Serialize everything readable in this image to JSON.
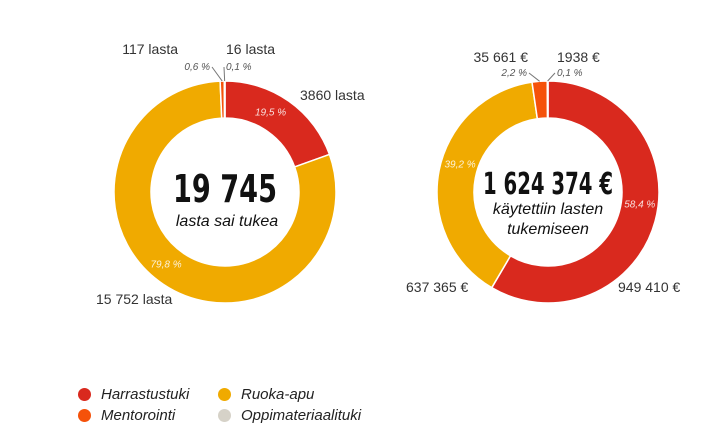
{
  "chart_data": [
    {
      "type": "pie",
      "variant": "donut",
      "center_value": "19 745",
      "center_label": "lasta sai tukea",
      "start": "top",
      "direction": "clockwise",
      "slices": [
        {
          "category": "Harrastustuki",
          "value": 3860,
          "value_label": "3860 lasta",
          "percent": 19.5,
          "percent_label": "19,5 %",
          "pct_inside": true
        },
        {
          "category": "Ruoka-apu",
          "value": 15752,
          "value_label": "15 752 lasta",
          "percent": 79.8,
          "percent_label": "79,8 %",
          "pct_inside": true
        },
        {
          "category": "Mentorointi",
          "value": 117,
          "value_label": "117 lasta",
          "percent": 0.6,
          "percent_label": "0,6 %",
          "pct_inside": false
        },
        {
          "category": "Oppimateriaalituki",
          "value": 16,
          "value_label": "16 lasta",
          "percent": 0.1,
          "percent_label": "0,1 %",
          "pct_inside": false
        }
      ]
    },
    {
      "type": "pie",
      "variant": "donut",
      "center_value": "1 624 374 €",
      "center_label": [
        "käytettiin lasten",
        "tukemiseen"
      ],
      "start": "top",
      "direction": "clockwise",
      "slices": [
        {
          "category": "Harrastustuki",
          "value": 949410,
          "value_label": "949 410 €",
          "percent": 58.4,
          "percent_label": "58,4 %",
          "pct_inside": true
        },
        {
          "category": "Ruoka-apu",
          "value": 637365,
          "value_label": "637 365 €",
          "percent": 39.2,
          "percent_label": "39,2 %",
          "pct_inside": true
        },
        {
          "category": "Mentorointi",
          "value": 35661,
          "value_label": "35 661 €",
          "percent": 2.2,
          "percent_label": "2,2 %",
          "pct_inside": false
        },
        {
          "category": "Oppimateriaalituki",
          "value": 1938,
          "value_label": "1938  €",
          "percent": 0.1,
          "percent_label": "0,1 %",
          "pct_inside": false
        }
      ]
    }
  ],
  "legend": {
    "placement": "bottom-left",
    "items": [
      {
        "label": "Harrastustuki",
        "color": "#d9291e"
      },
      {
        "label": "Ruoka-apu",
        "color": "#f0aa00"
      },
      {
        "label": "Mentorointi",
        "color": "#f5520a"
      },
      {
        "label": "Oppimateriaalituki",
        "color": "#d6d2c8"
      }
    ]
  },
  "colors": {
    "Harrastustuki": "#d9291e",
    "Ruoka-apu": "#f0aa00",
    "Mentorointi": "#f5520a",
    "Oppimateriaalituki": "#d6d2c8"
  }
}
